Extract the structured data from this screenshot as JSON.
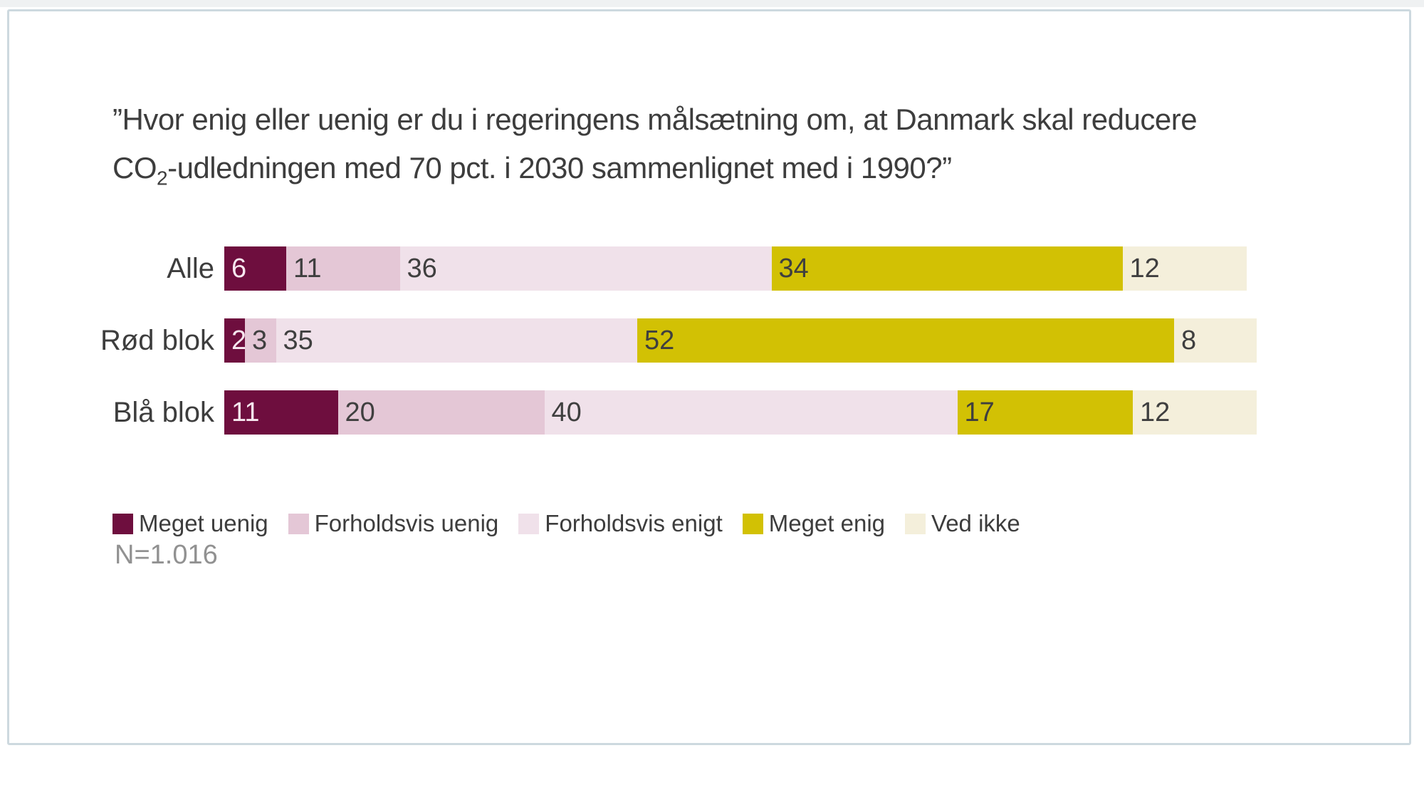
{
  "question": {
    "line1": "”Hvor enig eller uenig er du i regeringens målsætning om, at Danmark skal reducere",
    "line2_pre": "CO",
    "line2_sub": "2",
    "line2_post": "-udledningen med 70 pct. i 2030 sammenlignet med i 1990?”"
  },
  "chart_data": {
    "type": "bar",
    "orientation": "horizontal-stacked",
    "title": "Hvor enig eller uenig er du i regeringens målsætning om, at Danmark skal reducere CO2-udledningen med 70 pct. i 2030 sammenlignet med i 1990?",
    "categories": [
      "Alle",
      "Rød blok",
      "Blå blok"
    ],
    "series": [
      {
        "name": "Meget uenig",
        "color": "#6e0e3e",
        "values": [
          6,
          2,
          11
        ]
      },
      {
        "name": "Forholdsvis uenig",
        "color": "#e4c7d6",
        "values": [
          11,
          3,
          20
        ]
      },
      {
        "name": "Forholdsvis enigt",
        "color": "#f0e1ea",
        "values": [
          36,
          35,
          40
        ]
      },
      {
        "name": "Meget enig",
        "color": "#d2c104",
        "values": [
          34,
          52,
          17
        ]
      },
      {
        "name": "Ved ikke",
        "color": "#f4efdb",
        "values": [
          12,
          8,
          12
        ]
      }
    ],
    "xlim": [
      0,
      100
    ],
    "value_labels": true,
    "grid": false,
    "legend_position": "bottom",
    "note": "N=1.016"
  },
  "layout_colors": {
    "frame_border": "#cdd9df",
    "top_strip": "#eff1f2",
    "text": "#3d3d3d",
    "note_text": "#919191"
  }
}
